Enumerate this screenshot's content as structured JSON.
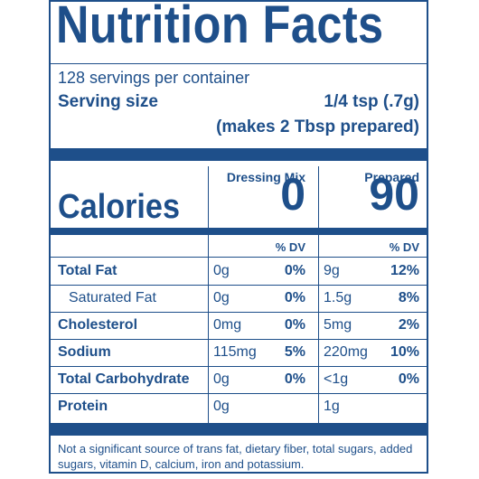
{
  "label": {
    "title": "Nutrition Facts",
    "servings_per_container": "128 servings per container",
    "serving_size_label": "Serving size",
    "serving_size_amount": "1/4 tsp (.7g)",
    "serving_size_note": "(makes 2 Tbsp prepared)",
    "columns": {
      "mix_heading": "Dressing Mix",
      "prepared_heading": "Prepared",
      "dv_heading": "% DV"
    },
    "calories": {
      "label": "Calories",
      "mix": "0",
      "prepared": "90"
    },
    "rows": [
      {
        "label": "Total Fat",
        "sub": false,
        "mix_amt": "0g",
        "mix_dv": "0%",
        "prep_amt": "9g",
        "prep_dv": "12%"
      },
      {
        "label": "Saturated Fat",
        "sub": true,
        "mix_amt": "0g",
        "mix_dv": "0%",
        "prep_amt": "1.5g",
        "prep_dv": "8%"
      },
      {
        "label": "Cholesterol",
        "sub": false,
        "mix_amt": "0mg",
        "mix_dv": "0%",
        "prep_amt": "5mg",
        "prep_dv": "2%"
      },
      {
        "label": "Sodium",
        "sub": false,
        "mix_amt": "115mg",
        "mix_dv": "5%",
        "prep_amt": "220mg",
        "prep_dv": "10%"
      },
      {
        "label": "Total Carbohydrate",
        "sub": false,
        "mix_amt": "0g",
        "mix_dv": "0%",
        "prep_amt": "<1g",
        "prep_dv": "0%"
      },
      {
        "label": "Protein",
        "sub": false,
        "mix_amt": "0g",
        "mix_dv": "",
        "prep_amt": "1g",
        "prep_dv": ""
      }
    ],
    "footnote": "Not a significant source of trans fat, dietary fiber, total sugars, added sugars, vitamin D, calcium, iron and potassium.",
    "colors": {
      "ink": "#1e4f8a",
      "background": "#ffffff"
    }
  }
}
